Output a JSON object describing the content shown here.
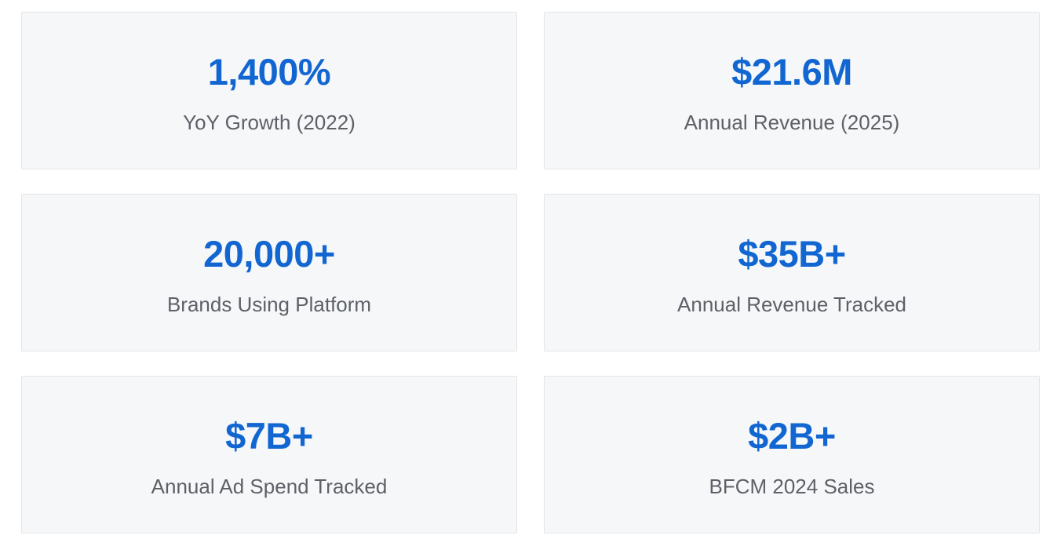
{
  "theme": {
    "accent_blue": "#1266d1",
    "label_gray": "#5d6167",
    "card_bg": "#f6f7f9",
    "card_border": "#e3e5e8",
    "page_bg": "#ffffff"
  },
  "stats": [
    {
      "value": "1,400%",
      "label": "YoY Growth (2022)"
    },
    {
      "value": "$21.6M",
      "label": "Annual Revenue (2025)"
    },
    {
      "value": "20,000+",
      "label": "Brands Using Platform"
    },
    {
      "value": "$35B+",
      "label": "Annual Revenue Tracked"
    },
    {
      "value": "$7B+",
      "label": "Annual Ad Spend Tracked"
    },
    {
      "value": "$2B+",
      "label": "BFCM 2024 Sales"
    }
  ]
}
